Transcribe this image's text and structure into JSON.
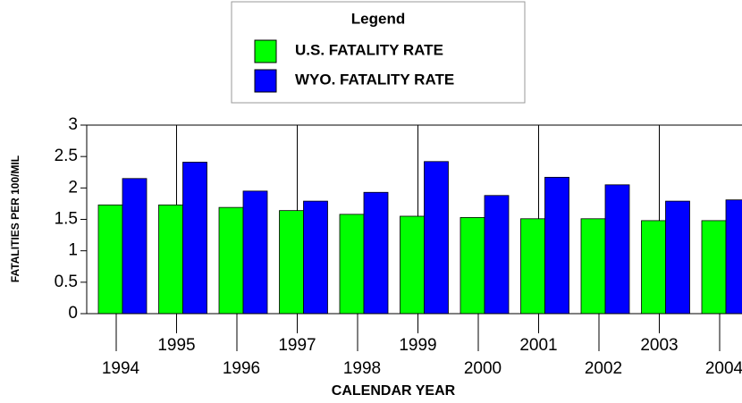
{
  "chart_data": {
    "type": "bar",
    "legend_title": "Legend",
    "y_label": "FATALITIES PER 100/MIL",
    "x_label": "CALENDAR YEAR",
    "categories": [
      "1994",
      "1995",
      "1996",
      "1997",
      "1998",
      "1999",
      "2000",
      "2001",
      "2002",
      "2003",
      "2004"
    ],
    "series": [
      {
        "name": "U.S. FATALITY RATE",
        "color": "#00ff00",
        "values": [
          1.73,
          1.73,
          1.69,
          1.64,
          1.58,
          1.55,
          1.53,
          1.51,
          1.51,
          1.48,
          1.48
        ]
      },
      {
        "name": "WYO. FATALITY RATE",
        "color": "#0000ff",
        "values": [
          2.15,
          2.41,
          1.95,
          1.79,
          1.93,
          2.42,
          1.88,
          2.17,
          2.05,
          1.79,
          1.81
        ]
      }
    ],
    "ylim": [
      0,
      3
    ],
    "yticks": [
      0,
      0.5,
      1,
      1.5,
      2,
      2.5,
      3
    ]
  }
}
